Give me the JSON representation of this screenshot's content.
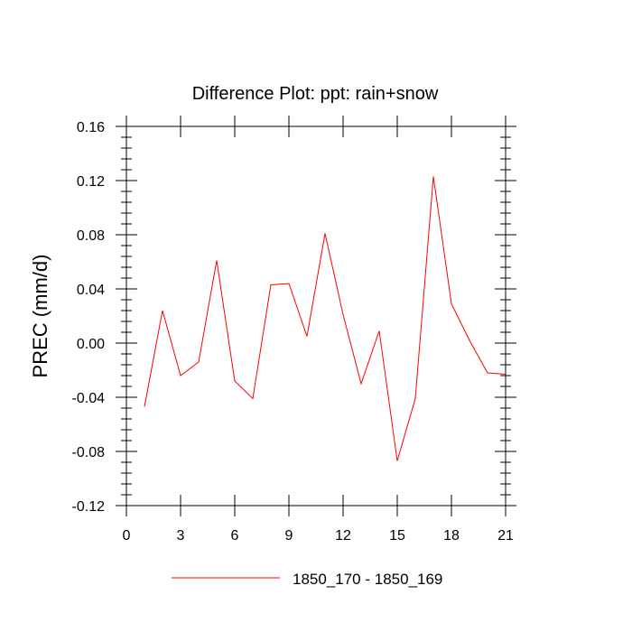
{
  "chart_data": {
    "type": "line",
    "title": "Difference Plot: ppt: rain+snow",
    "xlabel": "",
    "ylabel": "PREC  (mm/d)",
    "xlim": [
      0,
      21
    ],
    "ylim": [
      -0.12,
      0.16
    ],
    "xticks": [
      0,
      3,
      6,
      9,
      12,
      15,
      18,
      21
    ],
    "xtick_labels": [
      "0",
      "3",
      "6",
      "9",
      "12",
      "15",
      "18",
      "21"
    ],
    "yticks": [
      -0.12,
      -0.08,
      -0.04,
      0.0,
      0.04,
      0.08,
      0.12,
      0.16
    ],
    "ytick_labels": [
      "-0.12",
      "-0.08",
      "-0.04",
      "0.00",
      "0.04",
      "0.08",
      "0.12",
      "0.16"
    ],
    "grid": false,
    "legend_position": "bottom",
    "series": [
      {
        "name": "1850_170 - 1850_169",
        "color": "#ff0000",
        "x": [
          1,
          2,
          3,
          4,
          5,
          6,
          7,
          8,
          9,
          10,
          11,
          12,
          13,
          14,
          15,
          16,
          17,
          18,
          19,
          20,
          21
        ],
        "y": [
          -0.047,
          0.024,
          -0.024,
          -0.014,
          0.061,
          -0.028,
          -0.041,
          0.043,
          0.044,
          0.005,
          0.081,
          0.021,
          -0.03,
          0.009,
          -0.087,
          -0.041,
          0.123,
          0.029,
          0.002,
          -0.022,
          -0.023
        ]
      }
    ]
  }
}
